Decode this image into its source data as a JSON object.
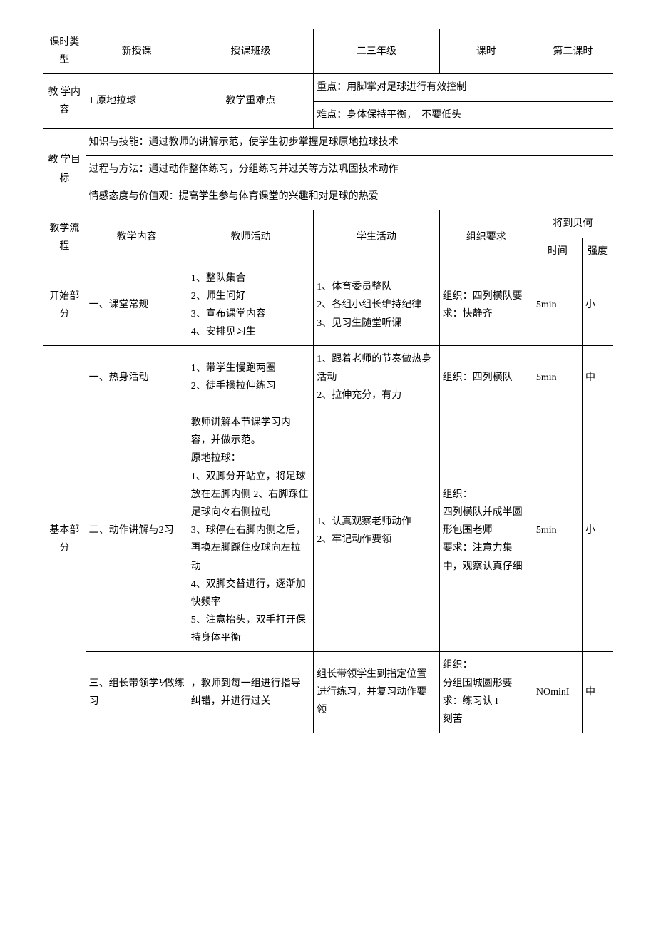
{
  "header": {
    "row1": {
      "label1": "课时类型",
      "val1": "新授课",
      "label2": "授课班级",
      "val2": "二三年级",
      "label3": "课时",
      "val3": "第二课时"
    },
    "row2": {
      "label1": "教 学内容",
      "val1": "1 原地拉球",
      "label2": "教学重难点",
      "key_point": "重点：用脚掌对足球进行有效控制",
      "difficulty": "难点：身体保持平衡，　不要低头"
    },
    "objectives": {
      "label": "教 学目标",
      "line1": "知识与技能：通过教师的讲解示范，使学生初步掌握足球原地拉球技术",
      "line2": "过程与方法：通过动作整体练习，分组练习并过关等方法巩固技术动作",
      "line3": "情感态度与价值观：提高学生参与体育课堂的兴趣和对足球的热爱"
    }
  },
  "flow_header": {
    "col1": "教学流程",
    "col2": "教学内容",
    "col3": "教师活动",
    "col4": "学生活动",
    "col5": "组织要求",
    "col6": "将到贝何",
    "col6a": "时间",
    "col6b": "强度"
  },
  "sections": {
    "start": {
      "label": "开始部分",
      "content": "一、课堂常规",
      "teacher": "1、整队集合\n2、师生问好\n3、宣布课堂内容\n4、安排见习生",
      "student": "1、体育委员整队\n2、各组小组长维持纪律\n3、见习生随堂听课",
      "org": "组织：四列横队要求：快静齐",
      "time": "5min",
      "intensity": "小"
    },
    "basic": {
      "label": "基本部分",
      "r1": {
        "content": "一、热身活动",
        "teacher": "1、带学生慢跑两圈\n2、徒手操拉伸练习",
        "student": "1、跟着老师的节奏做热身活动\n2、拉伸充分，有力",
        "org": "组织：四列横队",
        "time": "5min",
        "intensity": "中"
      },
      "r2": {
        "content": "二、动作讲解与2习",
        "teacher": "教师讲解本节课学习内容，并做示范。\n原地拉球：\n1、双脚分开站立，将足球放在左脚内侧 2、右脚踩住足球向々右侧拉动\n3、球停在右脚内侧之后，再换左脚踩住皮球向左拉动\n4、双脚交替进行，逐渐加快频率\n5、注意抬头，双手打开保持身体平衡",
        "student": "1、认真观察老师动作\n2、牢记动作要领",
        "org": "组织：\n四列横队并成半圆形包围老师\n要求：注意力集中，观察认真仔细",
        "time": "5min",
        "intensity": "小"
      },
      "r3": {
        "content": "三、组长带领学⅟做练习",
        "teacher": "，教师到每一组进行指导纠错，并进行过关",
        "student": "组长带领学生到指定位置进行练习，并复习动作要领",
        "org": "组织：\n分组围城圆形要求：练习认 I\n刻苦",
        "time": "NOminI",
        "intensity": "中"
      }
    }
  }
}
